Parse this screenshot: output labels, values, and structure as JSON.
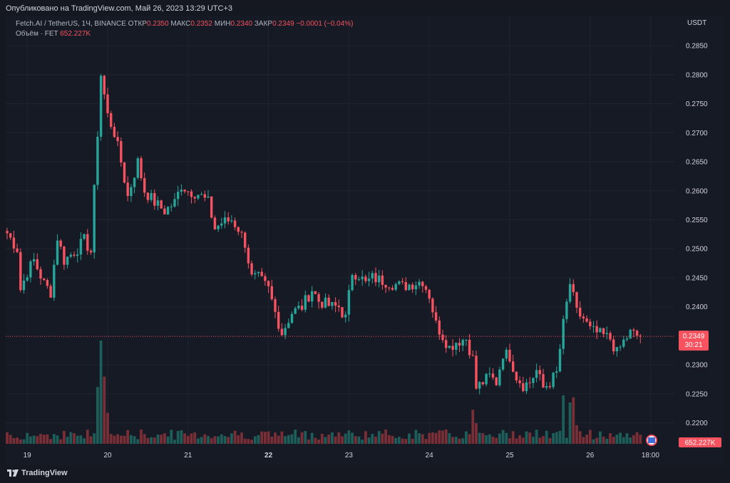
{
  "published": "Опубликовано на TradingView.com, Май 26, 2023 13:29 UTC+3",
  "legend": {
    "symbol": "Fetch.AI / TetherUS, 1Ч, BINANCE",
    "open_label": "ОТКР",
    "open": "0.2350",
    "high_label": "МАКС",
    "high": "0.2352",
    "low_label": "МИН",
    "low": "0.2340",
    "close_label": "ЗАКР",
    "close": "0.2349",
    "change": "−0.0001 (−0.04%)",
    "volume_label": "Объём · FET",
    "volume": "652.227K"
  },
  "footer": {
    "brand": "TradingView"
  },
  "colors": {
    "up": "#26a69a",
    "down": "#f7525f",
    "up_vol": "#1d5e5a",
    "down_vol": "#7a2f36",
    "grid": "#1f2430",
    "text": "#b2b5be"
  },
  "chart_data": {
    "type": "candlestick",
    "currency": "USDT",
    "ylim": [
      0.2165,
      0.2865
    ],
    "y_ticks": [
      "0.2850",
      "0.2800",
      "0.2750",
      "0.2700",
      "0.2650",
      "0.2600",
      "0.2550",
      "0.2500",
      "0.2450",
      "0.2400",
      "0.2300",
      "0.2250",
      "0.2200"
    ],
    "x_ticks": [
      {
        "label": "19",
        "bar": 6
      },
      {
        "label": "20",
        "bar": 30
      },
      {
        "label": "21",
        "bar": 54
      },
      {
        "label": "22",
        "bar": 78
      },
      {
        "label": "23",
        "bar": 102
      },
      {
        "label": "24",
        "bar": 126
      },
      {
        "label": "25",
        "bar": 150
      },
      {
        "label": "26",
        "bar": 174
      },
      {
        "label": "18:00",
        "bar": 192
      }
    ],
    "last_price": "0.2349",
    "countdown": "30:21",
    "volume_badge": "652.227K",
    "keypoints": [
      [
        0,
        0.2527
      ],
      [
        3,
        0.25
      ],
      [
        4,
        0.243
      ],
      [
        6,
        0.246
      ],
      [
        8,
        0.248
      ],
      [
        11,
        0.244
      ],
      [
        13,
        0.2425
      ],
      [
        15,
        0.252
      ],
      [
        17,
        0.248
      ],
      [
        21,
        0.25
      ],
      [
        23,
        0.2515
      ],
      [
        25,
        0.2495
      ],
      [
        26,
        0.26
      ],
      [
        28,
        0.28
      ],
      [
        30,
        0.273
      ],
      [
        32,
        0.27
      ],
      [
        34,
        0.265
      ],
      [
        36,
        0.259
      ],
      [
        39,
        0.265
      ],
      [
        41,
        0.26
      ],
      [
        44,
        0.258
      ],
      [
        47,
        0.2565
      ],
      [
        50,
        0.258
      ],
      [
        52,
        0.261
      ],
      [
        54,
        0.26
      ],
      [
        57,
        0.2595
      ],
      [
        60,
        0.258
      ],
      [
        62,
        0.2535
      ],
      [
        64,
        0.2545
      ],
      [
        67,
        0.255
      ],
      [
        69,
        0.2535
      ],
      [
        71,
        0.251
      ],
      [
        73,
        0.245
      ],
      [
        75,
        0.245
      ],
      [
        78,
        0.243
      ],
      [
        80,
        0.239
      ],
      [
        82,
        0.2355
      ],
      [
        85,
        0.239
      ],
      [
        88,
        0.24
      ],
      [
        91,
        0.243
      ],
      [
        93,
        0.241
      ],
      [
        95,
        0.2405
      ],
      [
        97,
        0.24
      ],
      [
        99,
        0.24
      ],
      [
        101,
        0.238
      ],
      [
        103,
        0.246
      ],
      [
        105,
        0.2455
      ],
      [
        107,
        0.244
      ],
      [
        109,
        0.245
      ],
      [
        112,
        0.2445
      ],
      [
        115,
        0.244
      ],
      [
        118,
        0.2435
      ],
      [
        121,
        0.244
      ],
      [
        124,
        0.2445
      ],
      [
        126,
        0.242
      ],
      [
        128,
        0.237
      ],
      [
        130,
        0.235
      ],
      [
        132,
        0.233
      ],
      [
        134,
        0.234
      ],
      [
        137,
        0.2345
      ],
      [
        139,
        0.231
      ],
      [
        140,
        0.226
      ],
      [
        142,
        0.227
      ],
      [
        144,
        0.228
      ],
      [
        146,
        0.227
      ],
      [
        148,
        0.232
      ],
      [
        150,
        0.2315
      ],
      [
        152,
        0.228
      ],
      [
        154,
        0.2265
      ],
      [
        156,
        0.227
      ],
      [
        158,
        0.229
      ],
      [
        160,
        0.226
      ],
      [
        162,
        0.227
      ],
      [
        164,
        0.2285
      ],
      [
        166,
        0.237
      ],
      [
        168,
        0.244
      ],
      [
        170,
        0.239
      ],
      [
        172,
        0.238
      ],
      [
        174,
        0.236
      ],
      [
        176,
        0.2355
      ],
      [
        178,
        0.235
      ],
      [
        180,
        0.2345
      ],
      [
        182,
        0.232
      ],
      [
        184,
        0.234
      ],
      [
        186,
        0.2355
      ],
      [
        188,
        0.235
      ],
      [
        189,
        0.2349
      ]
    ],
    "volume_spikes": [
      {
        "bar": 27,
        "value": 0.55
      },
      {
        "bar": 28,
        "value": 1.0
      },
      {
        "bar": 29,
        "value": 0.65
      },
      {
        "bar": 30,
        "value": 0.3
      },
      {
        "bar": 139,
        "value": 0.33
      },
      {
        "bar": 140,
        "value": 0.2
      },
      {
        "bar": 166,
        "value": 0.47
      },
      {
        "bar": 168,
        "value": 0.4
      },
      {
        "bar": 169,
        "value": 0.45
      },
      {
        "bar": 170,
        "value": 0.18
      }
    ]
  }
}
